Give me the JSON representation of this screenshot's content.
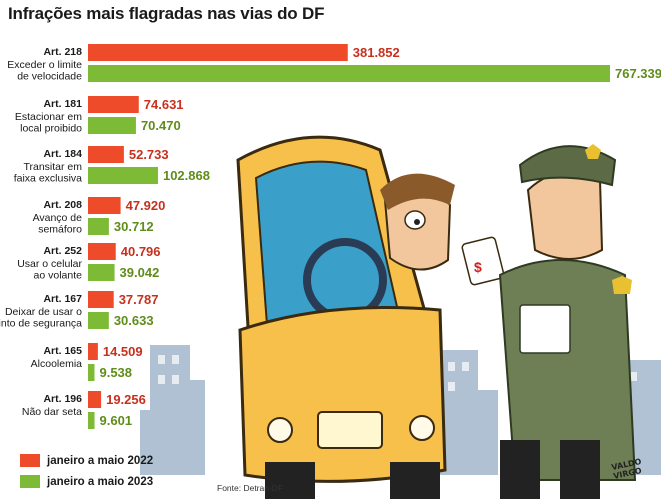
{
  "title": "Infrações mais flagradas nas vias do DF",
  "colors": {
    "series_2022": "#ee4b2b",
    "series_2023": "#7dbb37",
    "value_2022": "#c8301e",
    "value_2023": "#5f8d1a"
  },
  "legend": {
    "s2022": "janeiro a maio 2022",
    "s2023": "janeiro a maio 2023"
  },
  "source": "Fonte: Detran-DF",
  "signature": "VALDO VIRGO",
  "chart_data": {
    "type": "bar",
    "orientation": "horizontal",
    "title": "Infrações mais flagradas nas vias do DF",
    "categories": [
      {
        "art": "Art. 218",
        "desc": [
          "Exceder o limite",
          "de velocidade"
        ]
      },
      {
        "art": "Art. 181",
        "desc": [
          "Estacionar em",
          "local proibido"
        ]
      },
      {
        "art": "Art. 184",
        "desc": [
          "Transitar em",
          "faixa exclusiva"
        ]
      },
      {
        "art": "Art. 208",
        "desc": [
          "Avanço de",
          "semáforo"
        ]
      },
      {
        "art": "Art. 252",
        "desc": [
          "Usar o celular",
          "ao volante"
        ]
      },
      {
        "art": "Art. 167",
        "desc": [
          "Deixar de usar o",
          "cinto de segurança"
        ]
      },
      {
        "art": "Art. 165",
        "desc": [
          "Alcoolemia"
        ]
      },
      {
        "art": "Art. 196",
        "desc": [
          "Não dar seta"
        ]
      }
    ],
    "series": [
      {
        "name": "janeiro a maio 2022",
        "values": [
          381852,
          74631,
          52733,
          47920,
          40796,
          37787,
          14509,
          19256
        ],
        "labels": [
          "381.852",
          "74.631",
          "52.733",
          "47.920",
          "40.796",
          "37.787",
          "14.509",
          "19.256"
        ]
      },
      {
        "name": "janeiro a maio 2023",
        "values": [
          767339,
          70470,
          102868,
          30712,
          39042,
          30633,
          9538,
          9601
        ],
        "labels": [
          "767.339",
          "70.470",
          "102.868",
          "30.712",
          "39.042",
          "30.633",
          "9.538",
          "9.601"
        ]
      }
    ],
    "legend_position": "bottom-left"
  }
}
